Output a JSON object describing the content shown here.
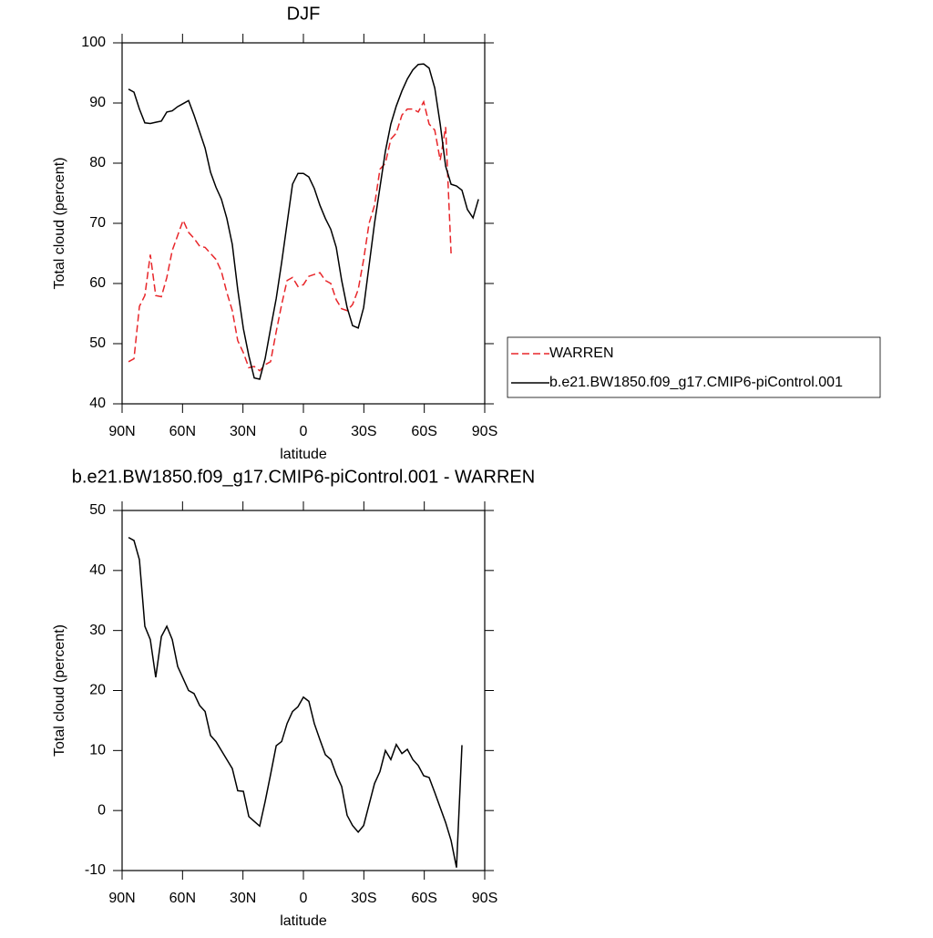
{
  "chart_data": [
    {
      "type": "line",
      "title": "DJF",
      "xlabel": "latitude",
      "ylabel": "Total cloud (percent)",
      "x": [
        86.8,
        84.1,
        81.4,
        78.7,
        76.0,
        73.3,
        70.5,
        67.8,
        65.1,
        62.4,
        59.7,
        57.0,
        54.3,
        51.5,
        48.8,
        46.1,
        43.4,
        40.7,
        38.0,
        35.3,
        32.6,
        29.8,
        27.1,
        24.4,
        21.7,
        19.0,
        16.3,
        13.5,
        10.8,
        8.1,
        5.4,
        2.7,
        0.0,
        -2.7,
        -5.4,
        -8.2,
        -10.9,
        -13.6,
        -16.3,
        -19.0,
        -21.7,
        -24.4,
        -27.2,
        -29.9,
        -32.6,
        -35.3,
        -38.0,
        -40.7,
        -43.4,
        -46.1,
        -48.9,
        -51.6,
        -54.3,
        -57.0,
        -59.7,
        -62.4,
        -65.2,
        -67.9,
        -70.6,
        -73.3,
        -76.0,
        -78.7,
        -81.4,
        -84.2,
        -86.9
      ],
      "series": [
        {
          "name": "WARREN",
          "color": "#e8262a",
          "dash": true,
          "values": [
            47,
            47.5,
            56.2,
            58,
            64.8,
            58,
            57.8,
            61,
            65.5,
            68,
            70.5,
            68.5,
            67.5,
            66.2,
            66,
            65,
            64,
            62,
            58.5,
            55.5,
            50.5,
            48.5,
            46,
            46.2,
            45.5,
            46.5,
            47,
            52,
            56.5,
            60.5,
            61,
            59.5,
            59.8,
            61.2,
            61.5,
            61.8,
            60.5,
            60,
            57.3,
            55.8,
            55.5,
            56.5,
            59,
            64,
            70,
            73,
            79,
            80,
            84,
            85,
            88,
            89,
            89,
            88.5,
            90.2,
            86.5,
            85.5,
            80.5,
            86,
            65,
            null,
            null,
            null,
            null,
            null
          ]
        },
        {
          "name": "b.e21.BW1850.f09_g17.CMIP6-piControl.001",
          "color": "#000000",
          "dash": false,
          "values": [
            92.3,
            91.8,
            89,
            86.7,
            86.6,
            86.8,
            87,
            88.5,
            88.7,
            89.4,
            89.9,
            90.4,
            88,
            85.2,
            82.5,
            78.5,
            76,
            74,
            70.8,
            66.5,
            59,
            52.5,
            48,
            44.3,
            44.1,
            47.5,
            52.5,
            57.5,
            63.5,
            70,
            76.5,
            78.3,
            78.3,
            77.7,
            75.8,
            73,
            70.8,
            69,
            66,
            60.5,
            56,
            53,
            52.6,
            56,
            63,
            70,
            76,
            82,
            86.5,
            89.5,
            92,
            94,
            95.5,
            96.4,
            96.5,
            95.8,
            92.5,
            86.5,
            79.5,
            76.5,
            76.2,
            75.5,
            72.3,
            70.9,
            74
          ]
        }
      ],
      "xlim": [
        90,
        -90
      ],
      "xticks": [
        {
          "value": 90,
          "label": "90N"
        },
        {
          "value": 60,
          "label": "60N"
        },
        {
          "value": 30,
          "label": "30N"
        },
        0,
        {
          "value": -30,
          "label": "30S"
        },
        {
          "value": -60,
          "label": "60S"
        },
        {
          "value": -90,
          "label": "90S"
        }
      ],
      "ylim": [
        40,
        100
      ],
      "yticks": [
        40,
        50,
        60,
        70,
        80,
        90,
        100
      ],
      "legend": "outside-right"
    },
    {
      "type": "line",
      "title": "b.e21.BW1850.f09_g17.CMIP6-piControl.001 - WARREN",
      "xlabel": "latitude",
      "ylabel": "Total cloud (percent)",
      "x": [
        86.8,
        84.1,
        81.4,
        78.7,
        76.0,
        73.3,
        70.5,
        67.8,
        65.1,
        62.4,
        59.7,
        57.0,
        54.3,
        51.5,
        48.8,
        46.1,
        43.4,
        40.7,
        38.0,
        35.3,
        32.6,
        29.8,
        27.1,
        24.4,
        21.7,
        19.0,
        16.3,
        13.5,
        10.8,
        8.1,
        5.4,
        2.7,
        0.0,
        -2.7,
        -5.4,
        -8.2,
        -10.9,
        -13.6,
        -16.3,
        -19.0,
        -21.7,
        -24.4,
        -27.2,
        -29.9,
        -32.6,
        -35.3,
        -38.0,
        -40.7,
        -43.4,
        -46.1,
        -48.9,
        -51.6,
        -54.3,
        -57.0,
        -59.7,
        -62.4,
        -65.2,
        -67.9,
        -70.6,
        -73.3,
        -76.0,
        -78.7,
        -81.4,
        -84.2,
        -86.9
      ],
      "values": [
        45.5,
        45,
        41.8,
        30.7,
        28.5,
        22.2,
        29,
        30.7,
        28.5,
        24,
        22,
        20,
        19.5,
        17.5,
        16.5,
        12.5,
        11.5,
        10,
        8.5,
        7,
        3.3,
        3.2,
        -1,
        -1.8,
        -2.6,
        1.5,
        6,
        10.8,
        11.5,
        14.5,
        16.5,
        17.3,
        18.9,
        18.2,
        14.5,
        11.8,
        9.3,
        8.5,
        6,
        4,
        -0.8,
        -2.5,
        -3.6,
        -2.5,
        1,
        4.5,
        6.5,
        10,
        8.5,
        11,
        9.5,
        10.2,
        8.5,
        7.5,
        5.8,
        5.5,
        3,
        0.5,
        -2,
        -5,
        -9.5,
        10.9,
        null,
        null,
        null
      ],
      "color": "#000000",
      "xlim": [
        90,
        -90
      ],
      "xticks": [
        {
          "value": 90,
          "label": "90N"
        },
        {
          "value": 60,
          "label": "60N"
        },
        {
          "value": 30,
          "label": "30N"
        },
        0,
        {
          "value": -30,
          "label": "30S"
        },
        {
          "value": -60,
          "label": "60S"
        },
        {
          "value": -90,
          "label": "90S"
        }
      ],
      "ylim": [
        -10,
        50
      ],
      "yticks": [
        -10,
        0,
        10,
        20,
        30,
        40,
        50
      ]
    }
  ]
}
